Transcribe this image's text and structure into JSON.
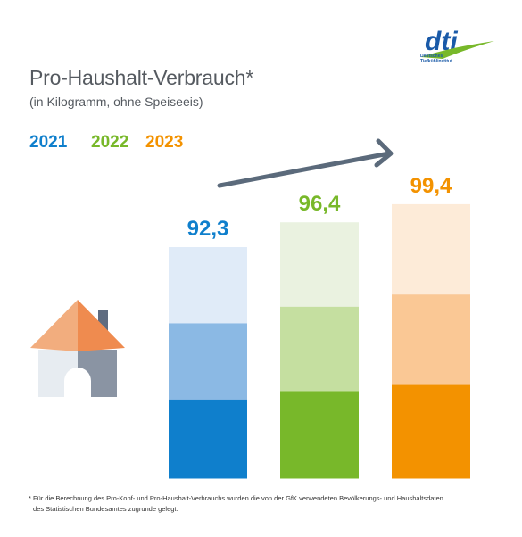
{
  "title": "Pro-Haushalt-Verbrauch*",
  "subtitle": "(in Kilogramm, ohne Speiseeis)",
  "logo": {
    "wordmark": "dti",
    "line1": "Deutsches",
    "line2": "Tiefkühlinstitut"
  },
  "footnote": {
    "line1": "* Für die Berechnung des Pro-Kopf- und Pro-Haushalt-Verbrauchs wurden die von der GfK verwendeten Bevölkerungs- und Haushaltsdaten",
    "line2": "des Statistischen Bundesamtes zugrunde gelegt."
  },
  "colors": {
    "2021": "#0f7fcc",
    "2022": "#78b82a",
    "2023": "#f39200",
    "text": "#555a60",
    "arrow": "#5b6a7b"
  },
  "icons": [
    "house-icon",
    "trend-arrow-icon",
    "dti-logo-icon"
  ],
  "chart_data": {
    "type": "bar",
    "categories": [
      "2021",
      "2022",
      "2023"
    ],
    "values": [
      92.3,
      96.4,
      99.4
    ],
    "value_labels": [
      "92,3",
      "96,4",
      "99,4"
    ],
    "legend": [
      "2021",
      "2022",
      "2023"
    ],
    "legend_placement": "top-left",
    "title": "Pro-Haushalt-Verbrauch*",
    "subtitle": "(in Kilogramm, ohne Speiseeis)",
    "xlabel": "",
    "ylabel": "",
    "grid": false,
    "trend": "up"
  }
}
